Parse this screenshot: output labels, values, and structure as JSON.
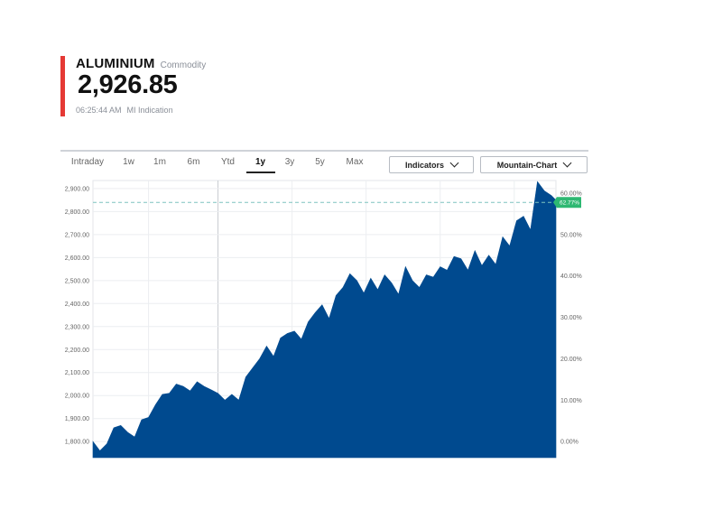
{
  "header": {
    "symbol": "ALUMINIUM",
    "asset_class": "Commodity",
    "price": "2,926.85",
    "time": "06:25:44 AM",
    "source": "MI Indication",
    "accent_color": "#e53935"
  },
  "toolbar": {
    "tabs": [
      {
        "label": "Intraday",
        "active": false
      },
      {
        "label": "1w",
        "active": false
      },
      {
        "label": "1m",
        "active": false
      },
      {
        "label": "6m",
        "active": false
      },
      {
        "label": "Ytd",
        "active": false
      },
      {
        "label": "1y",
        "active": true
      },
      {
        "label": "3y",
        "active": false
      },
      {
        "label": "5y",
        "active": false
      },
      {
        "label": "Max",
        "active": false
      }
    ],
    "indicators_label": "Indicators",
    "chart_type_label": "Mountain-Chart",
    "chevron_icon": "chevron-down-icon"
  },
  "chart_data": {
    "type": "area",
    "color": "#004a8f",
    "reference_line_color": "#7fc4bf",
    "badge_color": "#2eb872",
    "badge_label": "62.77%",
    "reference_value": 2840,
    "ylim": [
      1730,
      2935
    ],
    "grid": true,
    "y_left_ticks": [
      "2,900.00",
      "2,800.00",
      "2,700.00",
      "2,600.00",
      "2,500.00",
      "2,400.00",
      "2,300.00",
      "2,200.00",
      "2,100.00",
      "2,000.00",
      "1,900.00",
      "1,800.00"
    ],
    "y_left_tick_values": [
      2900,
      2800,
      2700,
      2600,
      2500,
      2400,
      2300,
      2200,
      2100,
      2000,
      1900,
      1800
    ],
    "y_right_ticks": [
      "60.00%",
      "50.00%",
      "40.00%",
      "30.00%",
      "20.00%",
      "10.00%",
      "0.00%"
    ],
    "y_right_tick_values": [
      60,
      50,
      40,
      30,
      20,
      10,
      0
    ],
    "pct_base": 1800,
    "x": [
      0,
      1.5,
      3,
      4.5,
      6,
      7.5,
      9,
      10.5,
      12,
      13.5,
      15,
      16.5,
      18,
      19.5,
      21,
      22.5,
      24,
      25.5,
      27,
      28.5,
      30,
      31.5,
      33,
      34.5,
      36,
      37.5,
      39,
      40.5,
      42,
      43.5,
      45,
      46.5,
      48,
      49.5,
      51,
      52.5,
      54,
      55.5,
      57,
      58.5,
      60,
      61.5,
      63,
      64.5,
      66,
      67.5,
      69,
      70.5,
      72,
      73.5,
      75,
      76.5,
      78,
      79.5,
      81,
      82.5,
      84,
      85.5,
      87,
      88.5,
      90,
      91.5,
      93,
      94.5,
      96,
      97.5,
      99,
      100
    ],
    "values": [
      1800,
      1760,
      1790,
      1860,
      1870,
      1840,
      1820,
      1895,
      1905,
      1960,
      2005,
      2010,
      2050,
      2040,
      2020,
      2060,
      2040,
      2025,
      2010,
      1980,
      2005,
      1980,
      2080,
      2120,
      2160,
      2215,
      2170,
      2250,
      2270,
      2280,
      2245,
      2320,
      2360,
      2395,
      2335,
      2435,
      2470,
      2530,
      2500,
      2445,
      2510,
      2460,
      2525,
      2490,
      2440,
      2560,
      2500,
      2470,
      2525,
      2515,
      2560,
      2545,
      2605,
      2595,
      2545,
      2630,
      2565,
      2610,
      2570,
      2690,
      2650,
      2760,
      2780,
      2720,
      2930,
      2890,
      2870,
      2850
    ]
  }
}
